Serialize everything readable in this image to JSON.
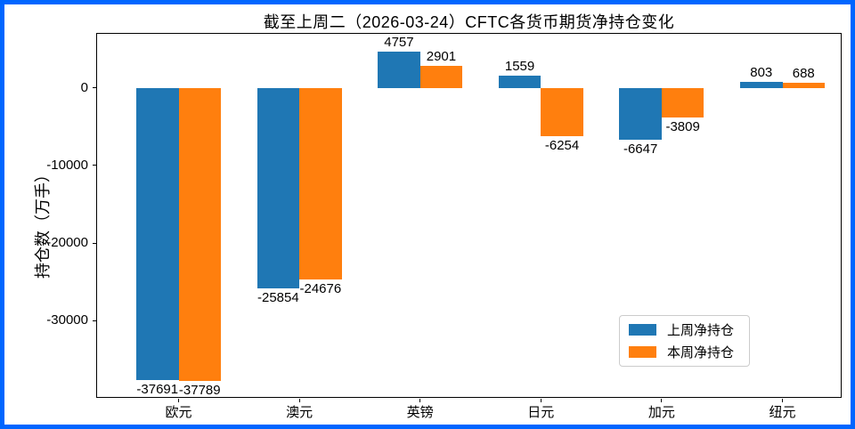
{
  "figure": {
    "frame_color": "#0066ff",
    "background": "#ffffff",
    "spine_color": "#000000"
  },
  "chart_data": {
    "type": "bar",
    "title": "截至上周二（2026-03-24）CFTC各货币期货净持仓变化",
    "xlabel": "",
    "ylabel": "持仓数（万手）",
    "categories": [
      "欧元",
      "澳元",
      "英镑",
      "日元",
      "加元",
      "纽元"
    ],
    "series": [
      {
        "name": "上周净持仓",
        "color": "#1f77b4",
        "values": [
          -37691,
          -25854,
          4757,
          1559,
          -6647,
          803
        ]
      },
      {
        "name": "本周净持仓",
        "color": "#ff7f0e",
        "values": [
          -37789,
          -24676,
          2901,
          -6254,
          -3809,
          688
        ]
      }
    ],
    "yticks": [
      0,
      -10000,
      -20000,
      -30000
    ],
    "ylim": [
      -40100,
      7000
    ],
    "grid": false,
    "bar_value_labels": true,
    "legend": {
      "position": "lower right",
      "entries": [
        "上周净持仓",
        "本周净持仓"
      ]
    }
  }
}
